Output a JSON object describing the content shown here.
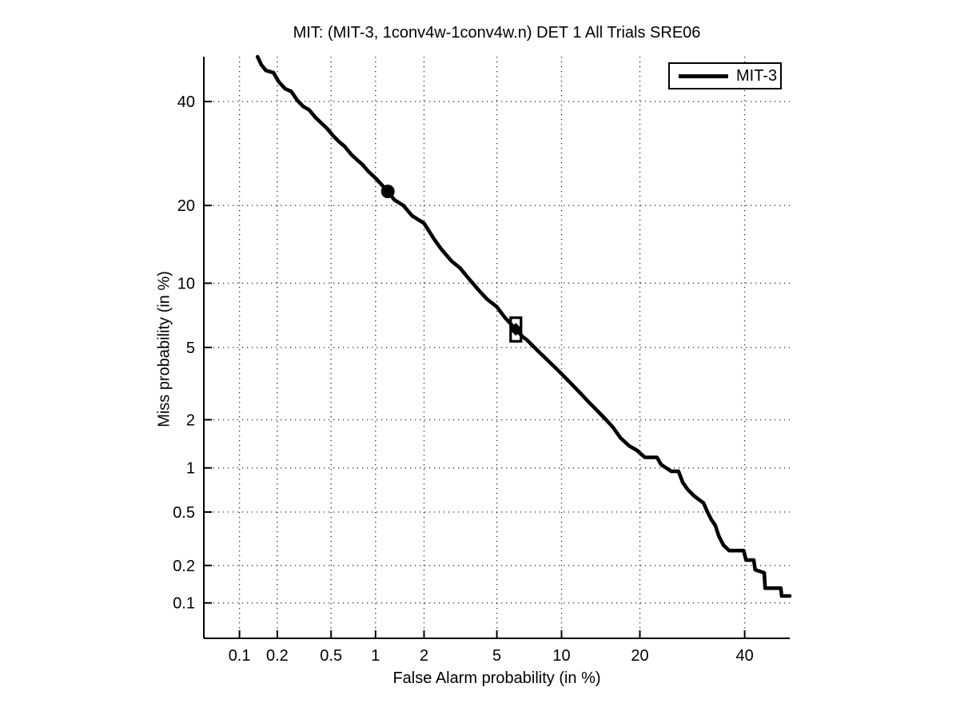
{
  "figure": {
    "background_color": "#ffffff",
    "axis_color": "#000000",
    "grid_color": "#333333"
  },
  "chart_data": {
    "type": "line",
    "subtype": "DET-curve",
    "title": "MIT: (MIT-3, 1conv4w-1conv4w.n) DET 1 All Trials SRE06",
    "xlabel": "False Alarm probability (in %)",
    "ylabel": "Miss probability (in %)",
    "x_scale": "probit",
    "y_scale": "probit",
    "xlim_percent": [
      0.05,
      50
    ],
    "ylim_percent": [
      0.05,
      50
    ],
    "grid": true,
    "x_ticks": [
      0.1,
      0.2,
      0.5,
      1,
      2,
      5,
      10,
      20,
      40
    ],
    "x_tick_labels": [
      "0.1",
      "0.2",
      "0.5",
      "1",
      "2",
      "5",
      "10",
      "20",
      "40"
    ],
    "y_ticks": [
      0.1,
      0.2,
      0.5,
      1,
      2,
      5,
      10,
      20,
      40
    ],
    "y_tick_labels": [
      "0.1",
      "0.2",
      "0.5",
      "1",
      "2",
      "5",
      "10",
      "20",
      "40"
    ],
    "legend": {
      "position": "top-right",
      "entries": [
        {
          "label": "MIT-3",
          "color": "#000000",
          "line_style": "solid"
        }
      ]
    },
    "series": [
      {
        "name": "MIT-3",
        "color": "#000000",
        "points_fa_miss_percent": [
          [
            0.14,
            50.0
          ],
          [
            0.15,
            48.2
          ],
          [
            0.163,
            46.9
          ],
          [
            0.187,
            46.4
          ],
          [
            0.205,
            44.4
          ],
          [
            0.23,
            42.8
          ],
          [
            0.256,
            42.2
          ],
          [
            0.285,
            40.2
          ],
          [
            0.315,
            38.9
          ],
          [
            0.347,
            38.2
          ],
          [
            0.385,
            36.6
          ],
          [
            0.425,
            35.4
          ],
          [
            0.466,
            34.3
          ],
          [
            0.515,
            32.8
          ],
          [
            0.565,
            31.6
          ],
          [
            0.621,
            30.6
          ],
          [
            0.69,
            29.0
          ],
          [
            0.76,
            27.9
          ],
          [
            0.82,
            27.1
          ],
          [
            0.9,
            25.8
          ],
          [
            1.0,
            24.6
          ],
          [
            1.1,
            23.4
          ],
          [
            1.2,
            22.3
          ],
          [
            1.32,
            20.9
          ],
          [
            1.5,
            20.0
          ],
          [
            1.7,
            18.4
          ],
          [
            2.0,
            17.3
          ],
          [
            2.275,
            15.2
          ],
          [
            2.5,
            13.9
          ],
          [
            2.87,
            12.4
          ],
          [
            3.2,
            11.6
          ],
          [
            3.6,
            10.4
          ],
          [
            4.0,
            9.4
          ],
          [
            4.46,
            8.5
          ],
          [
            5.0,
            7.85
          ],
          [
            5.48,
            7.0
          ],
          [
            6.2,
            6.15
          ],
          [
            6.68,
            5.66
          ],
          [
            7.0,
            5.45
          ],
          [
            8.0,
            4.71
          ],
          [
            9.0,
            4.13
          ],
          [
            10.0,
            3.64
          ],
          [
            11.0,
            3.21
          ],
          [
            12.0,
            2.84
          ],
          [
            13.0,
            2.52
          ],
          [
            14.0,
            2.26
          ],
          [
            15.1,
            2.0
          ],
          [
            16.0,
            1.81
          ],
          [
            17.1,
            1.55
          ],
          [
            18.4,
            1.38
          ],
          [
            19.5,
            1.3
          ],
          [
            20.8,
            1.17
          ],
          [
            22.8,
            1.17
          ],
          [
            23.5,
            1.05
          ],
          [
            25.3,
            0.95
          ],
          [
            26.6,
            0.95
          ],
          [
            27.4,
            0.8
          ],
          [
            28.3,
            0.72
          ],
          [
            29.5,
            0.65
          ],
          [
            30.8,
            0.6
          ],
          [
            31.4,
            0.58
          ],
          [
            32.2,
            0.5
          ],
          [
            33.0,
            0.44
          ],
          [
            33.8,
            0.4
          ],
          [
            34.5,
            0.335
          ],
          [
            35.5,
            0.285
          ],
          [
            36.7,
            0.26
          ],
          [
            39.8,
            0.26
          ],
          [
            40.3,
            0.22
          ],
          [
            42.0,
            0.22
          ],
          [
            42.3,
            0.185
          ],
          [
            44.3,
            0.175
          ],
          [
            44.5,
            0.132
          ],
          [
            48.0,
            0.132
          ],
          [
            48.2,
            0.114
          ],
          [
            50.0,
            0.114
          ]
        ]
      }
    ],
    "markers": [
      {
        "shape": "filled-circle",
        "fa_percent": 1.2,
        "miss_percent": 22.3
      },
      {
        "shape": "open-square",
        "fa_percent": 6.2,
        "miss_percent": 6.6
      },
      {
        "shape": "open-square",
        "fa_percent": 6.2,
        "miss_percent": 5.7
      },
      {
        "shape": "filled-diamond",
        "fa_percent": 6.2,
        "miss_percent": 6.15
      }
    ]
  }
}
